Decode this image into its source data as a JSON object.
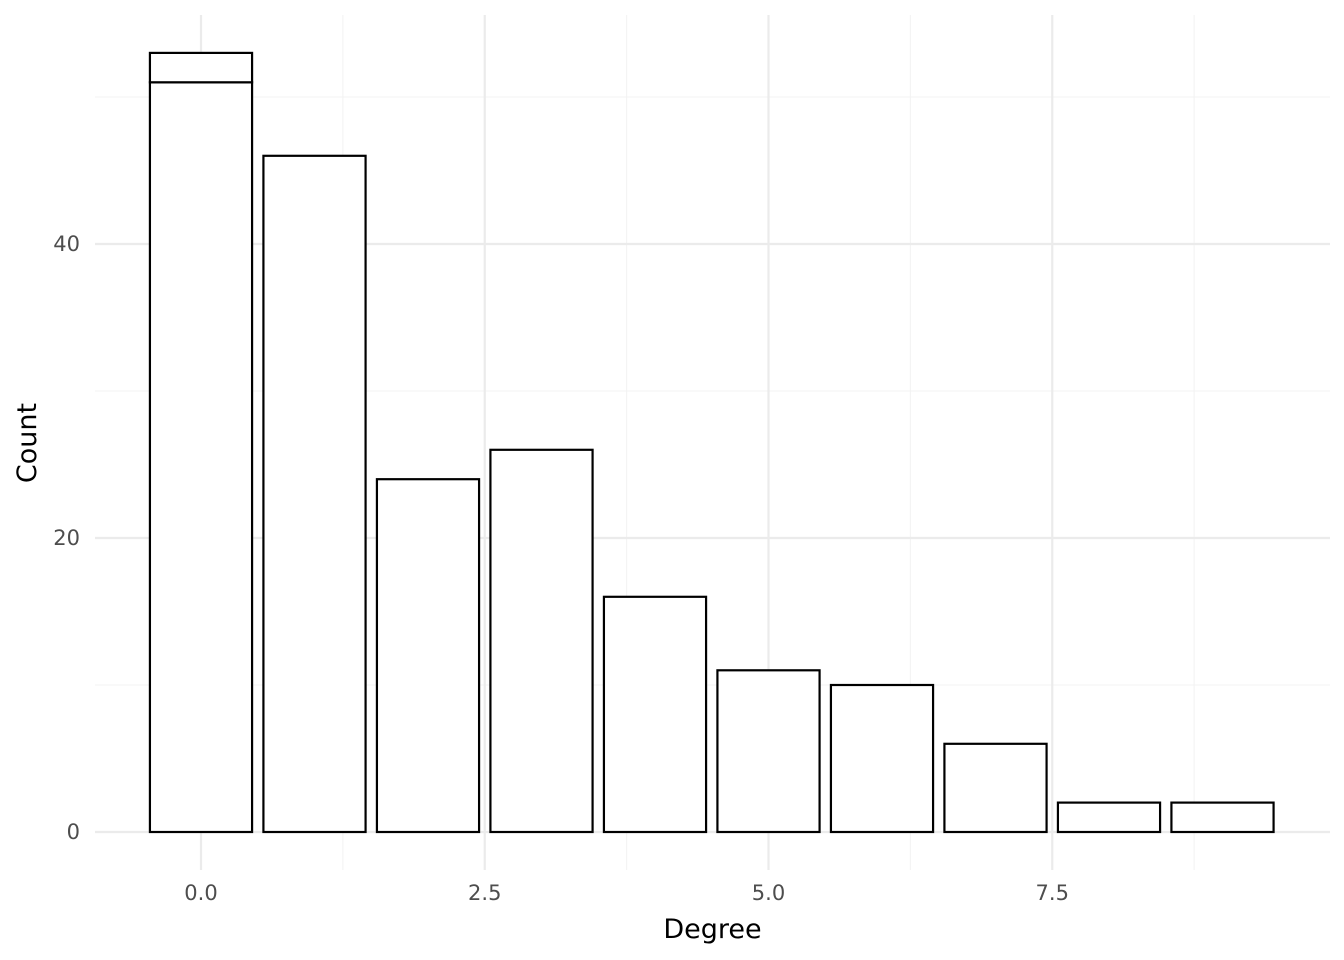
{
  "chart_data": {
    "type": "bar",
    "title": "",
    "xlabel": "Degree",
    "ylabel": "Count",
    "x": [
      0,
      1,
      2,
      3,
      4,
      5,
      6,
      7,
      8,
      9
    ],
    "values": [
      53,
      46,
      24,
      26,
      16,
      11,
      10,
      6,
      2,
      2
    ],
    "stacked_segments": [
      {
        "x": 0,
        "segments": [
          51,
          2
        ]
      }
    ],
    "xlim": [
      -0.5,
      9.5
    ],
    "ylim": [
      0,
      53
    ],
    "x_ticks": [
      "0.0",
      "2.5",
      "5.0",
      "7.5"
    ],
    "x_tick_values": [
      0,
      2.5,
      5,
      7.5
    ],
    "y_ticks": [
      "0",
      "20",
      "40"
    ],
    "y_tick_values": [
      0,
      20,
      40
    ],
    "grid": true,
    "legend": "none",
    "colors": {
      "bar_fill": "#ffffff",
      "bar_outline": "#000000",
      "grid": "#ebebeb"
    }
  }
}
